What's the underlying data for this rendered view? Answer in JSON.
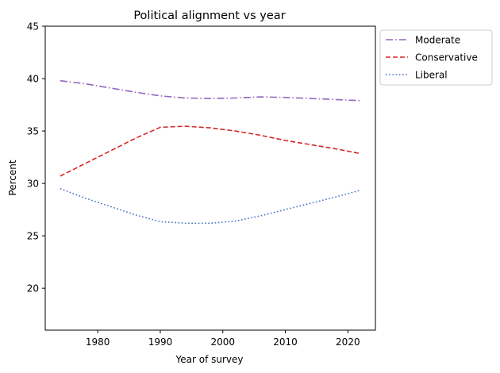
{
  "chart_data": {
    "type": "line",
    "title": "Political alignment vs year",
    "xlabel": "Year of survey",
    "ylabel": "Percent",
    "xlim": [
      1971.6,
      2024.4
    ],
    "ylim": [
      16,
      45
    ],
    "xticks": [
      1980,
      1990,
      2000,
      2010,
      2020
    ],
    "yticks": [
      20,
      25,
      30,
      35,
      40,
      45
    ],
    "grid": false,
    "legend_position": "outside-top-right",
    "series": [
      {
        "name": "Moderate",
        "color": "#9467bd",
        "linestyle": "dashdot",
        "x": [
          1974,
          1978,
          1982,
          1986,
          1990,
          1994,
          1998,
          2002,
          2006,
          2010,
          2014,
          2018,
          2022
        ],
        "y": [
          39.8,
          39.5,
          39.1,
          38.7,
          38.35,
          38.15,
          38.1,
          38.15,
          38.25,
          38.2,
          38.1,
          38.0,
          37.9
        ]
      },
      {
        "name": "Conservative",
        "color": "#d62728",
        "linestyle": "dashed",
        "x": [
          1974,
          1978,
          1982,
          1986,
          1990,
          1994,
          1998,
          2002,
          2006,
          2010,
          2014,
          2018,
          2022
        ],
        "y": [
          30.7,
          31.9,
          33.1,
          34.3,
          35.35,
          35.45,
          35.3,
          35.0,
          34.6,
          34.1,
          33.7,
          33.3,
          32.85
        ]
      },
      {
        "name": "Liberal",
        "color": "#4472c4",
        "linestyle": "dotted",
        "x": [
          1974,
          1978,
          1982,
          1986,
          1990,
          1994,
          1998,
          2002,
          2006,
          2010,
          2014,
          2018,
          2022
        ],
        "y": [
          29.5,
          28.6,
          27.8,
          27.0,
          26.35,
          26.2,
          26.2,
          26.4,
          26.9,
          27.5,
          28.1,
          28.7,
          29.35
        ]
      }
    ]
  }
}
